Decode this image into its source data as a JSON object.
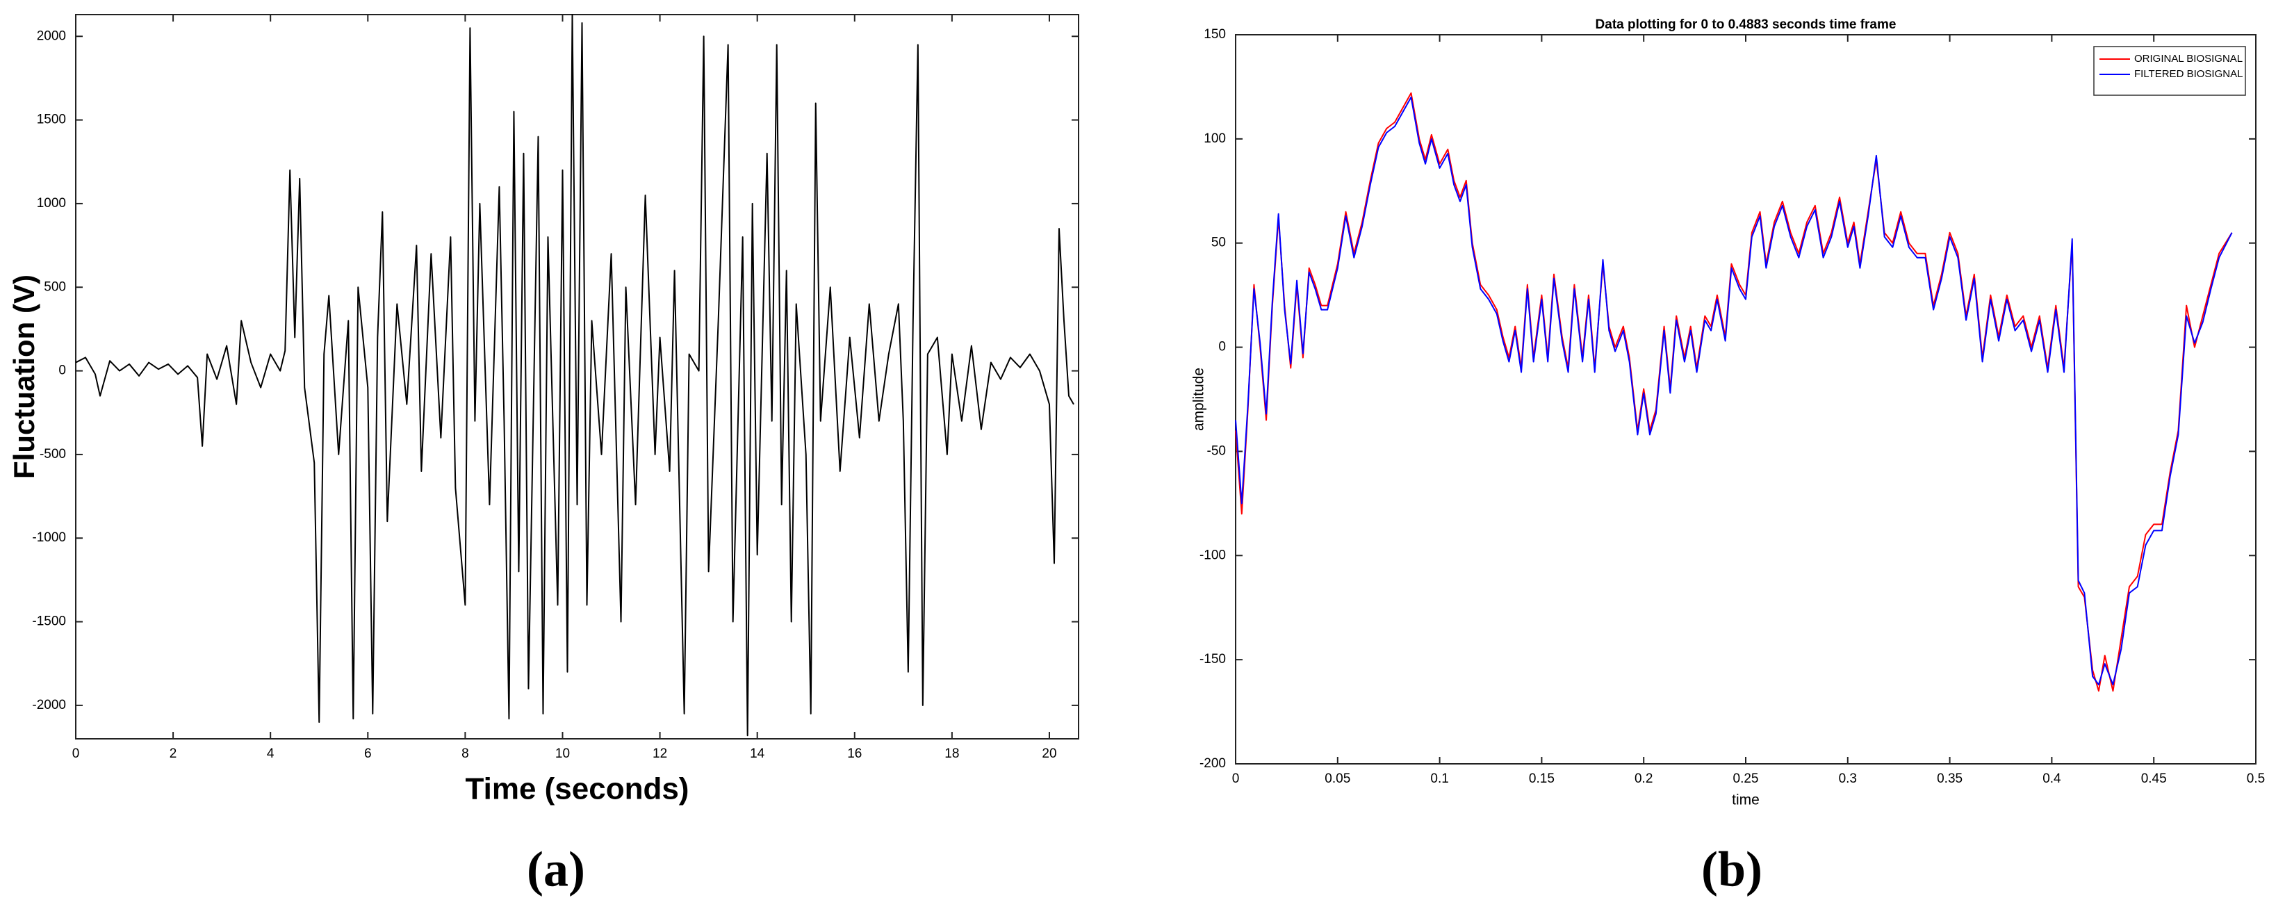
{
  "chart_data": [
    {
      "type": "line",
      "caption": "(a)",
      "x_label": "Time (seconds)",
      "y_label": "Fluctuation (V)",
      "color": "#000000",
      "xlim": [
        0,
        20.6
      ],
      "ylim": [
        -2200,
        2130
      ],
      "xticks": [
        0,
        2,
        4,
        6,
        8,
        10,
        12,
        14,
        16,
        18,
        20
      ],
      "yticks": [
        -2000,
        -1500,
        -1000,
        -500,
        0,
        500,
        1000,
        1500,
        2000
      ],
      "x": [
        0,
        0.2,
        0.4,
        0.5,
        0.7,
        0.9,
        1.1,
        1.3,
        1.5,
        1.7,
        1.9,
        2.1,
        2.3,
        2.5,
        2.6,
        2.7,
        2.9,
        3.1,
        3.3,
        3.4,
        3.6,
        3.8,
        4.0,
        4.2,
        4.3,
        4.4,
        4.5,
        4.6,
        4.7,
        4.9,
        5.0,
        5.1,
        5.2,
        5.4,
        5.6,
        5.7,
        5.8,
        6.0,
        6.1,
        6.2,
        6.3,
        6.4,
        6.6,
        6.8,
        7.0,
        7.1,
        7.3,
        7.5,
        7.7,
        7.8,
        8.0,
        8.1,
        8.2,
        8.3,
        8.5,
        8.7,
        8.8,
        8.9,
        9.0,
        9.1,
        9.2,
        9.3,
        9.5,
        9.6,
        9.7,
        9.9,
        10.0,
        10.1,
        10.2,
        10.3,
        10.4,
        10.5,
        10.6,
        10.8,
        11.0,
        11.2,
        11.3,
        11.5,
        11.7,
        11.9,
        12.0,
        12.2,
        12.3,
        12.5,
        12.6,
        12.8,
        12.9,
        13.0,
        13.2,
        13.4,
        13.5,
        13.7,
        13.8,
        13.9,
        14.0,
        14.2,
        14.3,
        14.4,
        14.5,
        14.6,
        14.7,
        14.8,
        15.0,
        15.1,
        15.2,
        15.3,
        15.5,
        15.7,
        15.9,
        16.1,
        16.3,
        16.5,
        16.7,
        16.9,
        17.0,
        17.1,
        17.2,
        17.3,
        17.4,
        17.5,
        17.7,
        17.9,
        18.0,
        18.2,
        18.4,
        18.6,
        18.8,
        19.0,
        19.2,
        19.4,
        19.6,
        19.8,
        20.0,
        20.1,
        20.2,
        20.3,
        20.4,
        20.5
      ],
      "values": [
        50,
        80,
        -20,
        -150,
        60,
        0,
        40,
        -30,
        50,
        10,
        40,
        -20,
        30,
        -40,
        -450,
        100,
        -50,
        150,
        -200,
        300,
        50,
        -100,
        100,
        0,
        120,
        1200,
        200,
        1150,
        -100,
        -550,
        -2100,
        100,
        450,
        -500,
        300,
        -2080,
        500,
        -100,
        -2050,
        200,
        950,
        -900,
        400,
        -200,
        750,
        -600,
        700,
        -400,
        800,
        -700,
        -1400,
        2050,
        -300,
        1000,
        -800,
        1100,
        -300,
        -2080,
        1550,
        -1200,
        1300,
        -1900,
        1400,
        -2050,
        800,
        -1400,
        1200,
        -1800,
        2130,
        -800,
        2080,
        -1400,
        300,
        -500,
        700,
        -1500,
        500,
        -800,
        1050,
        -500,
        200,
        -600,
        600,
        -2050,
        100,
        0,
        2000,
        -1200,
        300,
        1950,
        -1500,
        800,
        -2180,
        1000,
        -1100,
        1300,
        -300,
        1950,
        -800,
        600,
        -1500,
        400,
        -500,
        -2050,
        1600,
        -300,
        500,
        -600,
        200,
        -400,
        400,
        -300,
        100,
        400,
        -300,
        -1800,
        300,
        1950,
        -2000,
        100,
        200,
        -500,
        100,
        -300,
        150,
        -350,
        50,
        -50,
        80,
        20,
        100,
        0,
        -200,
        -1150,
        850,
        300,
        -150,
        -200
      ]
    },
    {
      "type": "line",
      "caption": "(b)",
      "title": "Data plotting for 0 to 0.4883 seconds time frame",
      "x_label": "time",
      "y_label": "amplitude",
      "legend": "upper right",
      "xlim": [
        0,
        0.5
      ],
      "ylim": [
        -200,
        150
      ],
      "xticks": [
        0,
        0.05,
        0.1,
        0.15,
        0.2,
        0.25,
        0.3,
        0.35,
        0.4,
        0.45,
        0.5
      ],
      "yticks": [
        -200,
        -150,
        -100,
        -50,
        0,
        50,
        100,
        150
      ],
      "x": [
        0,
        0.003,
        0.006,
        0.009,
        0.012,
        0.015,
        0.018,
        0.021,
        0.024,
        0.027,
        0.03,
        0.033,
        0.036,
        0.039,
        0.042,
        0.045,
        0.05,
        0.054,
        0.058,
        0.062,
        0.066,
        0.07,
        0.074,
        0.078,
        0.082,
        0.086,
        0.09,
        0.093,
        0.096,
        0.1,
        0.104,
        0.107,
        0.11,
        0.113,
        0.116,
        0.12,
        0.124,
        0.128,
        0.131,
        0.134,
        0.137,
        0.14,
        0.143,
        0.146,
        0.15,
        0.153,
        0.156,
        0.16,
        0.163,
        0.166,
        0.17,
        0.173,
        0.176,
        0.18,
        0.183,
        0.186,
        0.19,
        0.193,
        0.197,
        0.2,
        0.203,
        0.206,
        0.21,
        0.213,
        0.216,
        0.22,
        0.223,
        0.226,
        0.23,
        0.233,
        0.236,
        0.24,
        0.243,
        0.247,
        0.25,
        0.253,
        0.257,
        0.26,
        0.264,
        0.268,
        0.272,
        0.276,
        0.28,
        0.284,
        0.288,
        0.292,
        0.296,
        0.3,
        0.303,
        0.306,
        0.31,
        0.314,
        0.318,
        0.322,
        0.326,
        0.33,
        0.334,
        0.338,
        0.342,
        0.346,
        0.35,
        0.354,
        0.358,
        0.362,
        0.366,
        0.37,
        0.374,
        0.378,
        0.382,
        0.386,
        0.39,
        0.394,
        0.398,
        0.402,
        0.406,
        0.41,
        0.413,
        0.416,
        0.42,
        0.423,
        0.426,
        0.43,
        0.434,
        0.438,
        0.442,
        0.446,
        0.45,
        0.454,
        0.458,
        0.462,
        0.466,
        0.47,
        0.474,
        0.478,
        0.482,
        0.4883
      ],
      "series": [
        {
          "name": "ORIGINAL BIOSIGNAL",
          "color": "#ff0000",
          "values": [
            -40,
            -80,
            -30,
            30,
            0,
            -35,
            20,
            62,
            20,
            -10,
            30,
            -5,
            38,
            30,
            20,
            20,
            40,
            65,
            45,
            60,
            80,
            98,
            105,
            108,
            115,
            122,
            100,
            90,
            102,
            88,
            95,
            80,
            72,
            80,
            50,
            30,
            25,
            18,
            5,
            -5,
            10,
            -10,
            30,
            -5,
            25,
            -5,
            35,
            5,
            -10,
            30,
            -5,
            25,
            -10,
            40,
            10,
            0,
            10,
            -5,
            -40,
            -20,
            -40,
            -30,
            10,
            -20,
            15,
            -5,
            10,
            -10,
            15,
            10,
            25,
            5,
            40,
            30,
            25,
            55,
            65,
            40,
            60,
            70,
            55,
            45,
            60,
            68,
            45,
            55,
            72,
            50,
            60,
            40,
            65,
            90,
            55,
            50,
            65,
            50,
            45,
            45,
            20,
            35,
            55,
            45,
            15,
            35,
            -5,
            25,
            5,
            25,
            10,
            15,
            0,
            15,
            -10,
            20,
            -10,
            50,
            -115,
            -120,
            -155,
            -165,
            -148,
            -165,
            -140,
            -115,
            -110,
            -90,
            -85,
            -85,
            -60,
            -40,
            20,
            0,
            15,
            30,
            45,
            55
          ]
        },
        {
          "name": "FILTERED BIOSIGNAL",
          "color": "#0000ff",
          "values": [
            -35,
            -75,
            -28,
            28,
            2,
            -32,
            22,
            64,
            18,
            -8,
            32,
            -3,
            36,
            28,
            18,
            18,
            38,
            63,
            43,
            58,
            78,
            96,
            103,
            106,
            113,
            120,
            98,
            88,
            100,
            86,
            93,
            78,
            70,
            78,
            48,
            28,
            23,
            16,
            3,
            -7,
            8,
            -12,
            28,
            -7,
            23,
            -7,
            33,
            3,
            -12,
            28,
            -7,
            23,
            -12,
            42,
            8,
            -2,
            8,
            -7,
            -42,
            -22,
            -42,
            -32,
            8,
            -22,
            13,
            -7,
            8,
            -12,
            13,
            8,
            23,
            3,
            38,
            28,
            23,
            53,
            63,
            38,
            58,
            68,
            53,
            43,
            58,
            66,
            43,
            53,
            70,
            48,
            58,
            38,
            63,
            92,
            53,
            48,
            63,
            48,
            43,
            43,
            18,
            33,
            53,
            43,
            13,
            33,
            -7,
            23,
            3,
            23,
            8,
            13,
            -2,
            13,
            -12,
            18,
            -12,
            52,
            -112,
            -118,
            -158,
            -162,
            -152,
            -162,
            -145,
            -118,
            -115,
            -95,
            -88,
            -88,
            -62,
            -42,
            15,
            2,
            12,
            28,
            43,
            55
          ]
        }
      ]
    }
  ]
}
